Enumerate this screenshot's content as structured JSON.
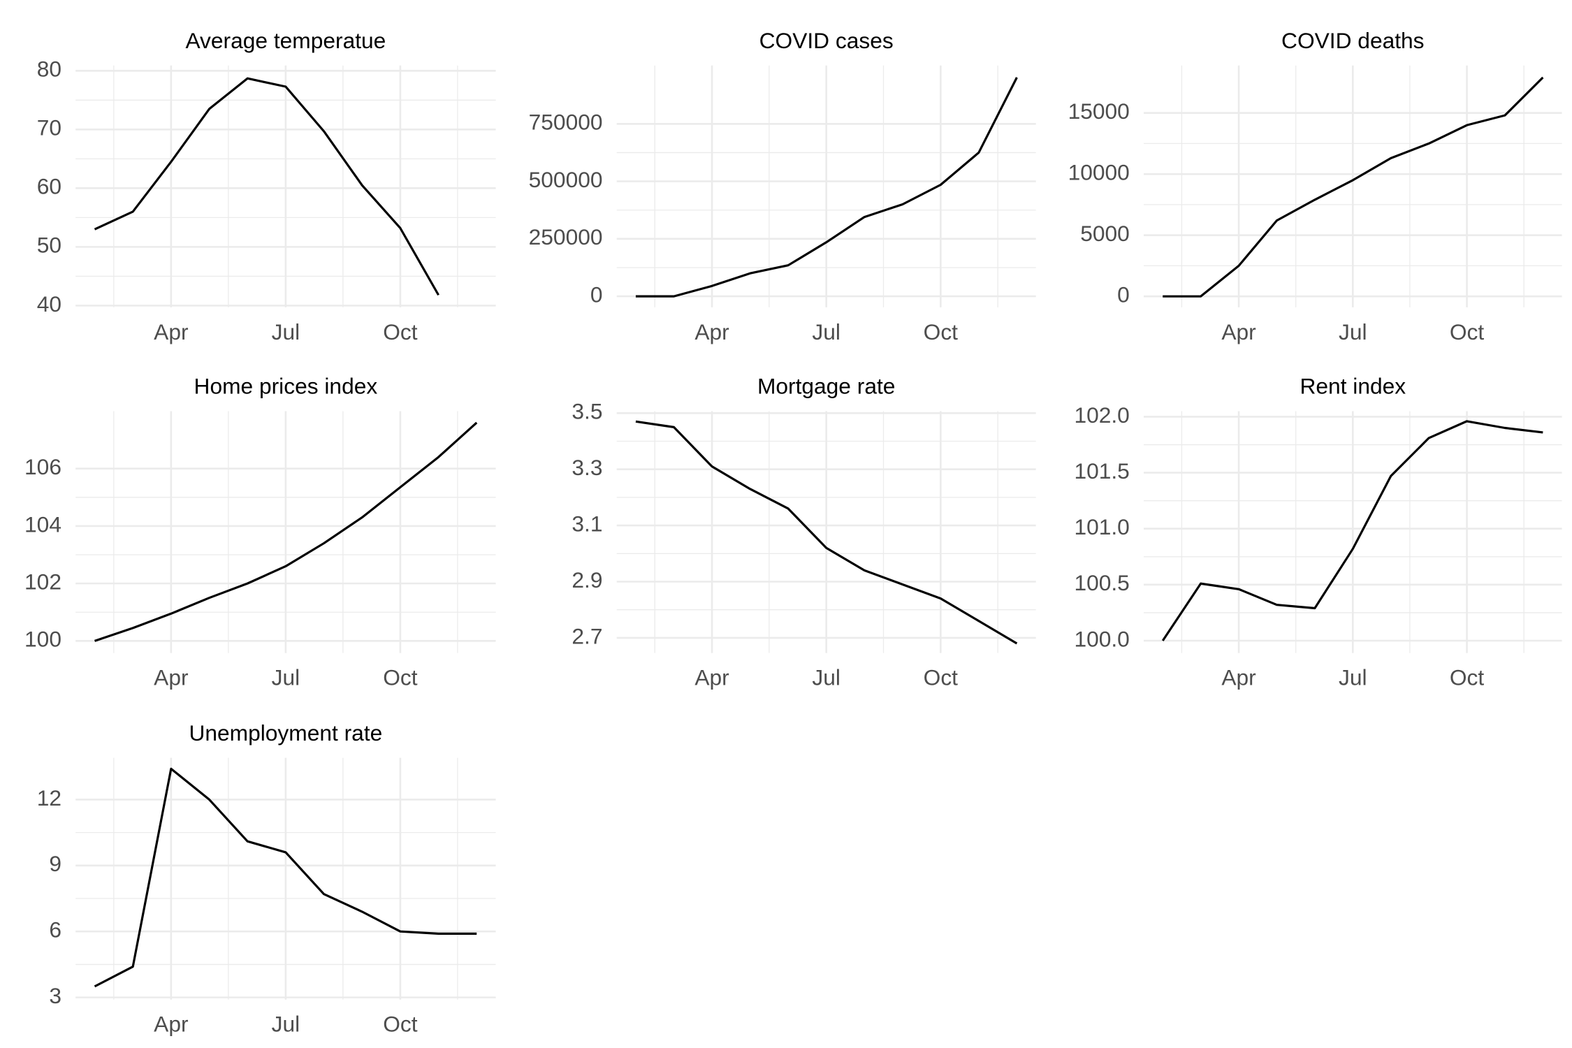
{
  "chart_data": [
    {
      "type": "line",
      "title": "Average temperatue",
      "categories": [
        null,
        null,
        "Apr",
        null,
        null,
        "Jul",
        null,
        null,
        "Oct",
        null,
        null
      ],
      "values": [
        53,
        56,
        64.5,
        73.5,
        78.7,
        77.3,
        69.7,
        60.5,
        53.2,
        41.8,
        null
      ],
      "color": "#000000",
      "ylim": [
        39.7,
        80.9
      ],
      "yticks": [
        40,
        50,
        60,
        70,
        80
      ],
      "grid": true
    },
    {
      "type": "line",
      "title": "COVID cases",
      "categories": [
        null,
        null,
        "Apr",
        null,
        null,
        "Jul",
        null,
        null,
        "Oct",
        null,
        null
      ],
      "values": [
        0,
        0,
        45000,
        100000,
        135000,
        235000,
        345000,
        400000,
        485000,
        625000,
        952000
      ],
      "color": "#000000",
      "ylim": [
        -48000,
        1004000
      ],
      "yticks": [
        0,
        250000,
        500000,
        750000
      ],
      "grid": true
    },
    {
      "type": "line",
      "title": "COVID deaths",
      "categories": [
        null,
        null,
        "Apr",
        null,
        null,
        "Jul",
        null,
        null,
        "Oct",
        null,
        null
      ],
      "values": [
        0,
        0,
        2500,
        6200,
        7900,
        9500,
        11300,
        12500,
        14000,
        14800,
        17900
      ],
      "color": "#000000",
      "ylim": [
        -900,
        18880
      ],
      "yticks": [
        0,
        5000,
        10000,
        15000
      ],
      "grid": true
    },
    {
      "type": "line",
      "title": "Home prices index",
      "categories": [
        null,
        null,
        "Apr",
        null,
        null,
        "Jul",
        null,
        null,
        "Oct",
        null,
        null
      ],
      "values": [
        100,
        100.45,
        100.95,
        101.5,
        102.0,
        102.6,
        103.4,
        104.3,
        105.35,
        106.4,
        107.6
      ],
      "color": "#000000",
      "ylim": [
        99.58,
        108
      ],
      "yticks": [
        100,
        102,
        104,
        106
      ],
      "grid": true
    },
    {
      "type": "line",
      "title": "Mortgage rate",
      "categories": [
        null,
        null,
        "Apr",
        null,
        null,
        "Jul",
        null,
        null,
        "Oct",
        null,
        null
      ],
      "values": [
        3.47,
        3.45,
        3.31,
        3.23,
        3.16,
        3.02,
        2.94,
        2.89,
        2.84,
        2.76,
        2.68
      ],
      "color": "#000000",
      "ylim": [
        2.646,
        3.507
      ],
      "yticks": [
        2.7,
        2.9,
        3.1,
        3.3,
        3.5
      ],
      "grid": true
    },
    {
      "type": "line",
      "title": "Rent index",
      "categories": [
        null,
        null,
        "Apr",
        null,
        null,
        "Jul",
        null,
        null,
        "Oct",
        null,
        null
      ],
      "values": [
        100.0,
        100.51,
        100.46,
        100.32,
        100.29,
        100.82,
        101.47,
        101.81,
        101.96,
        101.9,
        101.86
      ],
      "color": "#000000",
      "ylim": [
        99.89,
        102.05
      ],
      "yticks": [
        {
          "value": 100,
          "label": "100.0"
        },
        {
          "value": 100.5,
          "label": "100.5"
        },
        {
          "value": 101,
          "label": "101.0"
        },
        {
          "value": 101.5,
          "label": "101.5"
        },
        {
          "value": 102,
          "label": "102.0"
        }
      ],
      "grid": true
    },
    {
      "type": "line",
      "title": "Unemployment rate",
      "categories": [
        null,
        null,
        "Apr",
        null,
        null,
        "Jul",
        null,
        null,
        "Oct",
        null,
        null
      ],
      "values": [
        3.5,
        4.4,
        13.4,
        12.0,
        10.1,
        9.6,
        7.7,
        6.9,
        6.0,
        5.9,
        5.9
      ],
      "color": "#000000",
      "ylim": [
        2.9,
        13.9
      ],
      "yticks": [
        3,
        6,
        9,
        12
      ],
      "grid": true
    }
  ]
}
